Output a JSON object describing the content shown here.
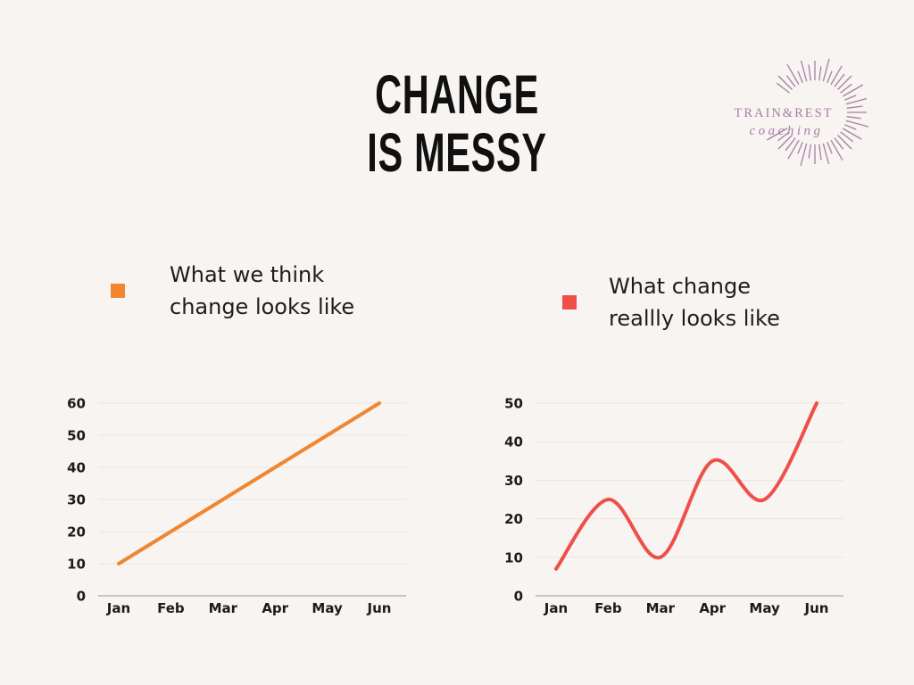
{
  "page": {
    "title_line1": "CHANGE",
    "title_line2": "IS MESSY",
    "background": "#f7f4f1",
    "title_color": "#101010"
  },
  "logo": {
    "name": "TRAIN&REST",
    "subtitle": "coaching",
    "color": "#a77fa5",
    "icon": "sunburst-icon"
  },
  "legends": [
    {
      "label_line1": "What we think",
      "label_line2": "change looks like",
      "color": "#f0862f",
      "swatch_icon": "orange-square-icon"
    },
    {
      "label_line1": "What change",
      "label_line2": "reallly looks like",
      "color": "#ef4f49",
      "swatch_icon": "red-square-icon"
    }
  ],
  "chart_data": [
    {
      "type": "line",
      "name": "expectation",
      "legend": "What we think change looks like",
      "categories": [
        "Jan",
        "Feb",
        "Mar",
        "Apr",
        "May",
        "Jun"
      ],
      "values": [
        10,
        20,
        30,
        40,
        50,
        60
      ],
      "color": "#f0862f",
      "ylim": [
        0,
        60
      ],
      "yticks": [
        0,
        10,
        20,
        30,
        40,
        50,
        60
      ],
      "smooth": false,
      "grid": true,
      "gridline_color": "#e8e5e1",
      "zero_line_color": "#c8c4c0",
      "legend_position": "top",
      "xlabel": "",
      "ylabel": ""
    },
    {
      "type": "line",
      "name": "reality",
      "legend": "What change reallly looks like",
      "categories": [
        "Jan",
        "Feb",
        "Mar",
        "Apr",
        "May",
        "Jun"
      ],
      "values": [
        7,
        25,
        10,
        35,
        25,
        50
      ],
      "color": "#ef4f49",
      "ylim": [
        0,
        50
      ],
      "yticks": [
        0,
        10,
        20,
        30,
        40,
        50
      ],
      "smooth": true,
      "grid": true,
      "gridline_color": "#e8e5e1",
      "zero_line_color": "#c8c4c0",
      "legend_position": "top",
      "xlabel": "",
      "ylabel": ""
    }
  ]
}
